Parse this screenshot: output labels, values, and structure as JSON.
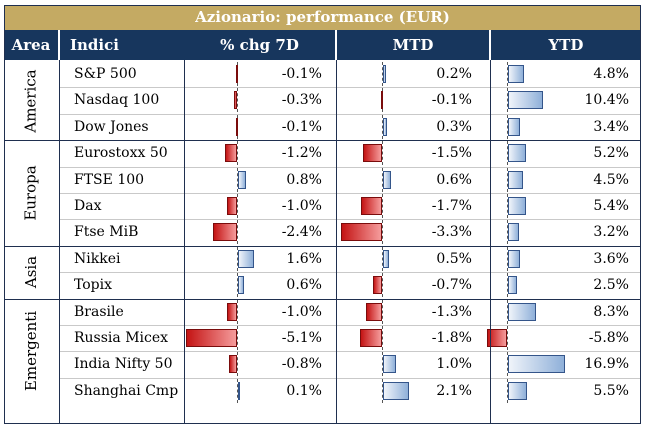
{
  "title": "Azionario: performance (EUR)",
  "headers": {
    "area": "Area",
    "indici": "Indici",
    "chg7d": "% chg 7D",
    "mtd": "MTD",
    "ytd": "YTD"
  },
  "groups": [
    {
      "name": "America",
      "rows": [
        {
          "indice": "S&P 500",
          "chg7d": "-0.1%",
          "mtd": "0.2%",
          "ytd": "4.8%",
          "v": [
            -0.1,
            0.2,
            4.8
          ]
        },
        {
          "indice": "Nasdaq 100",
          "chg7d": "-0.3%",
          "mtd": "-0.1%",
          "ytd": "10.4%",
          "v": [
            -0.3,
            -0.1,
            10.4
          ]
        },
        {
          "indice": "Dow Jones",
          "chg7d": "-0.1%",
          "mtd": "0.3%",
          "ytd": "3.4%",
          "v": [
            -0.1,
            0.3,
            3.4
          ]
        }
      ]
    },
    {
      "name": "Europa",
      "rows": [
        {
          "indice": "Eurostoxx 50",
          "chg7d": "-1.2%",
          "mtd": "-1.5%",
          "ytd": "5.2%",
          "v": [
            -1.2,
            -1.5,
            5.2
          ]
        },
        {
          "indice": "FTSE 100",
          "chg7d": "0.8%",
          "mtd": "0.6%",
          "ytd": "4.5%",
          "v": [
            0.8,
            0.6,
            4.5
          ]
        },
        {
          "indice": "Dax",
          "chg7d": "-1.0%",
          "mtd": "-1.7%",
          "ytd": "5.4%",
          "v": [
            -1.0,
            -1.7,
            5.4
          ]
        },
        {
          "indice": "Ftse MiB",
          "chg7d": "-2.4%",
          "mtd": "-3.3%",
          "ytd": "3.2%",
          "v": [
            -2.4,
            -3.3,
            3.2
          ]
        }
      ]
    },
    {
      "name": "Asia",
      "rows": [
        {
          "indice": "Nikkei",
          "chg7d": "1.6%",
          "mtd": "0.5%",
          "ytd": "3.6%",
          "v": [
            1.6,
            0.5,
            3.6
          ]
        },
        {
          "indice": "Topix",
          "chg7d": "0.6%",
          "mtd": "-0.7%",
          "ytd": "2.5%",
          "v": [
            0.6,
            -0.7,
            2.5
          ]
        }
      ]
    },
    {
      "name": "Emergenti",
      "rows": [
        {
          "indice": "Brasile",
          "chg7d": "-1.0%",
          "mtd": "-1.3%",
          "ytd": "8.3%",
          "v": [
            -1.0,
            -1.3,
            8.3
          ]
        },
        {
          "indice": "Russia Micex",
          "chg7d": "-5.1%",
          "mtd": "-1.8%",
          "ytd": "-5.8%",
          "v": [
            -5.1,
            -1.8,
            -5.8
          ]
        },
        {
          "indice": "India Nifty 50",
          "chg7d": "-0.8%",
          "mtd": "1.0%",
          "ytd": "16.9%",
          "v": [
            -0.8,
            1.0,
            16.9
          ]
        },
        {
          "indice": "Shanghai Cmp",
          "chg7d": "0.1%",
          "mtd": "2.1%",
          "ytd": "5.5%",
          "v": [
            0.1,
            2.1,
            5.5
          ]
        }
      ]
    }
  ]
}
